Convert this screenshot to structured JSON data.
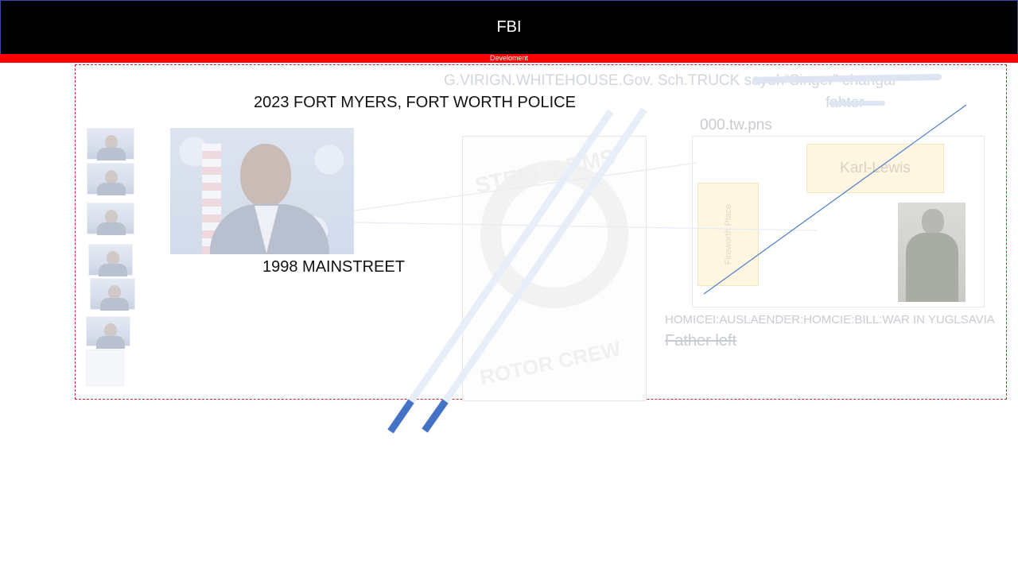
{
  "header": {
    "title": "FBI",
    "subtitle": "Develoment"
  },
  "headline": "2023 FORT MYERS, FORT WORTH POLICE",
  "address": "1998 MAINSTREET",
  "faded_heading": {
    "line1": "G.VIRIGN.WHITEHOUSE.Gov. Sch.TRUCK sayuh“Singer” changar",
    "line2": "fahter"
  },
  "file_label": "000.tw.pns",
  "notes": {
    "karl": "Karl-Lewis",
    "place": "Fireworth Place"
  },
  "homicide_line": "HOMICEI:AUSLAENDER:HOMCIE:BILL:WAR IN YUGLSAVIA",
  "father_line": "Father left",
  "icons": {
    "portrait": "portrait-photo",
    "poster": "poster-image",
    "soldier": "soldier-photo"
  },
  "colors": {
    "header_bg": "#000000",
    "accent_red": "#ff0000",
    "stripe_blue": "#4472c4"
  }
}
